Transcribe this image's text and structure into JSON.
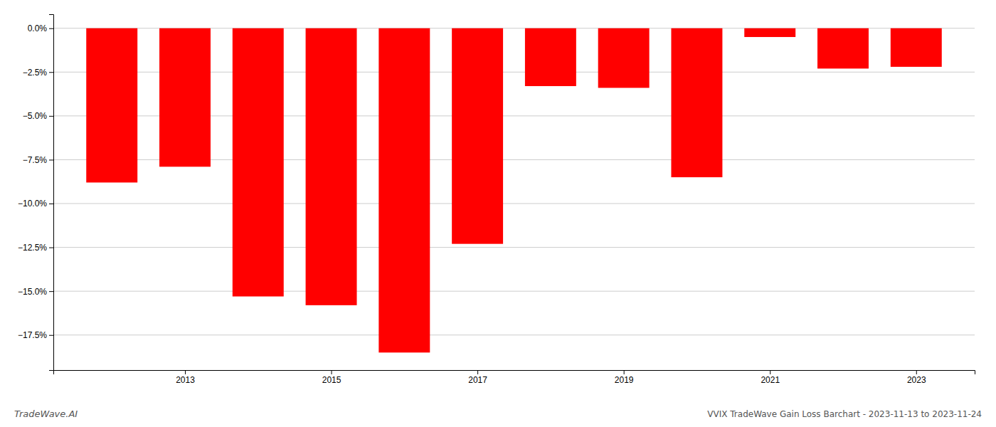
{
  "chart_data": {
    "type": "bar",
    "title": "VVIX TradeWave Gain Loss Barchart - 2023-11-13 to 2023-11-24",
    "annotations": [
      "TradeWave.AI"
    ],
    "x": [
      2012,
      2013,
      2014,
      2015,
      2016,
      2017,
      2018,
      2019,
      2020,
      2021,
      2022,
      2023
    ],
    "values": [
      -8.8,
      -7.9,
      -15.3,
      -15.8,
      -18.5,
      -12.3,
      -3.3,
      -3.4,
      -8.5,
      -0.5,
      -2.3,
      -2.2
    ],
    "color": "#ff0000",
    "xlim": [
      2011.2,
      2023.8
    ],
    "xticks": [
      2013,
      2015,
      2017,
      2019,
      2021,
      2023
    ],
    "ylim": [
      -19.5,
      0.8
    ],
    "yticks": [
      {
        "value": 0.0,
        "label": "0.0%"
      },
      {
        "value": -2.5,
        "label": "−2.5%"
      },
      {
        "value": -5.0,
        "label": "−5.0%"
      },
      {
        "value": -7.5,
        "label": "−7.5%"
      },
      {
        "value": -10.0,
        "label": "−10.0%"
      },
      {
        "value": -12.5,
        "label": "−12.5%"
      },
      {
        "value": -15.0,
        "label": "−15.0%"
      },
      {
        "value": -17.5,
        "label": "−17.5%"
      }
    ],
    "grid": true
  }
}
